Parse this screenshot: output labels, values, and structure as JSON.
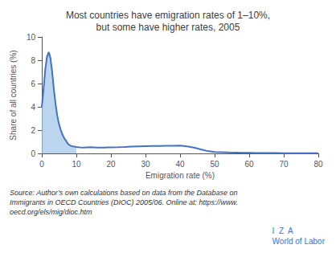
{
  "chart_data": {
    "type": "line",
    "title": "Most countries have emigration rates of 1–10%,\nbut some have higher rates, 2005",
    "xlabel": "Emigration rate (%)",
    "ylabel": "Share of all countries (%)",
    "x": [
      0,
      0.5,
      1.0,
      1.5,
      2.0,
      2.5,
      3.0,
      3.5,
      4.0,
      4.5,
      5.0,
      5.5,
      6.0,
      6.5,
      7.0,
      7.5,
      8.0,
      8.5,
      9.0,
      9.5,
      10.0,
      11.0,
      12.0,
      13.0,
      14.0,
      15.0,
      16.0,
      17.0,
      18.0,
      19.0,
      20.0,
      22.0,
      24.0,
      26.0,
      28.0,
      30.0,
      32.0,
      34.0,
      36.0,
      38.0,
      40.0,
      42.0,
      44.0,
      46.0,
      48.0,
      50.0,
      52.0,
      54.0,
      56.0,
      58.0,
      60.0,
      62.0,
      64.0,
      66.0,
      68.0,
      70.0,
      72.0,
      74.0,
      76.0,
      78.0,
      80.0
    ],
    "series": [
      {
        "color": "#4472C4",
        "values": [
          4.0,
          5.5,
          7.2,
          8.3,
          8.7,
          8.2,
          7.0,
          5.5,
          4.2,
          3.2,
          2.5,
          2.0,
          1.6,
          1.3,
          1.1,
          0.85,
          0.72,
          0.65,
          0.6,
          0.58,
          0.55,
          0.52,
          0.5,
          0.52,
          0.53,
          0.52,
          0.5,
          0.5,
          0.5,
          0.52,
          0.52,
          0.53,
          0.55,
          0.58,
          0.6,
          0.62,
          0.63,
          0.64,
          0.65,
          0.66,
          0.67,
          0.6,
          0.5,
          0.35,
          0.2,
          0.12,
          0.1,
          0.08,
          0.07,
          0.06,
          0.05,
          0.04,
          0.04,
          0.03,
          0.03,
          0.02,
          0.02,
          0.02,
          0.01,
          0.01,
          0.01
        ]
      }
    ],
    "fill_x_end": 10,
    "fill_color": "#9DC3E6",
    "xlim": [
      0,
      80
    ],
    "ylim": [
      0,
      10
    ],
    "xticks": [
      0,
      10,
      20,
      30,
      40,
      50,
      60,
      70,
      80
    ],
    "yticks": [
      0,
      2,
      4,
      6,
      8,
      10
    ],
    "grid": false,
    "annotations": [
      {
        "text": "Source: Author’s own calculations based on data from the Database on\nImmigrants in OECD Countries (DIOC) 2005/06. Online at: https://www.\noecd.org/els/mig/dioc.htm"
      },
      {
        "text": "I  Z  A\nWorld of Labor",
        "color": "#4472C4"
      }
    ]
  }
}
